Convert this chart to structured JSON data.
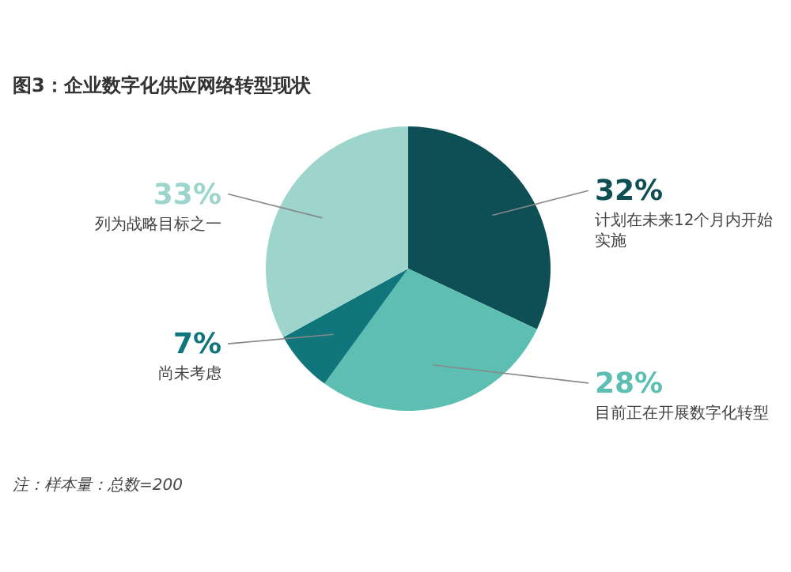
{
  "chart_data": {
    "type": "pie",
    "title": "图3：企业数字化供应网络转型现状",
    "categories": [
      "计划在未来12个月内开始实施",
      "目前正在开展数字化转型",
      "尚未考虑",
      "列为战略目标之一"
    ],
    "values": [
      32,
      28,
      7,
      33
    ],
    "value_labels": [
      "32%",
      "28%",
      "7%",
      "33%"
    ],
    "colors": [
      "#0e4f55",
      "#5dbfb2",
      "#10767b",
      "#9dd5cd"
    ],
    "annotations": [
      "注：样本量：总数=200"
    ]
  }
}
